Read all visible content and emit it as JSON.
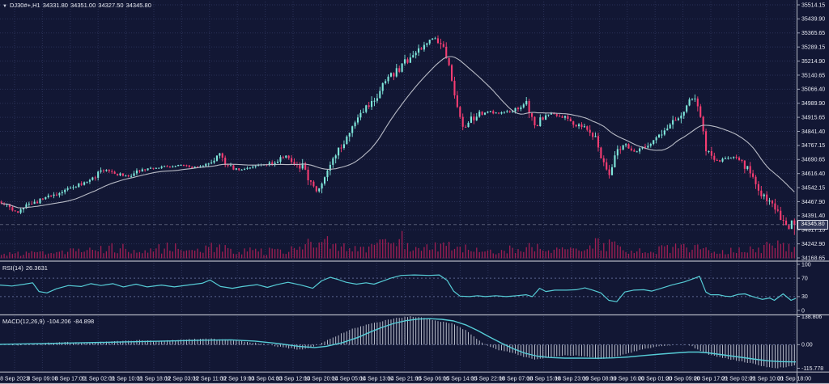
{
  "header": {
    "dropdown_icon": "▼",
    "symbol": "DJ30#+,H1",
    "open": "34331.80",
    "high": "34351.00",
    "low": "34327.50",
    "close": "34345.80"
  },
  "indicators": {
    "rsi": {
      "label": "RSI(14)",
      "value": "26.3631"
    },
    "macd": {
      "label": "MACD(12,26,9)",
      "macd_value": "-104.206",
      "signal_value": "-84.898"
    }
  },
  "colors": {
    "background": "#121734",
    "grid": "#2a3157",
    "level": "#5b6690",
    "bull": "#7fe7db",
    "bear": "#f63d72",
    "ma": "#b7bac5",
    "volume": "#a01e53",
    "indicator": "#56ccd6",
    "histogram": "#c8ccd8",
    "axis_text": "#e7e9f2",
    "separator": "#b3b6c2",
    "tick": "#9aa0b4",
    "price_line": "#9aa0b6"
  },
  "chart_data": [
    {
      "type": "candlestick",
      "title": "DJ30#+,H1",
      "bars": 288,
      "last_close": 34345.8,
      "ma_period": 24,
      "ylim": [
        34140,
        35545
      ],
      "y_ticks": [
        "35514.15",
        "35439.90",
        "35365.65",
        "35289.15",
        "35214.90",
        "35140.65",
        "35066.40",
        "34989.90",
        "34915.65",
        "34841.40",
        "34767.15",
        "34690.65",
        "34616.40",
        "34542.15",
        "34467.90",
        "34391.40",
        "34317.15",
        "34242.90",
        "34168.65"
      ],
      "current_price": "34345.80",
      "x_ticks": [
        "8 Sep 2023",
        "8 Sep 09:00",
        "8 Sep 17:00",
        "11 Sep 02:00",
        "11 Sep 10:00",
        "11 Sep 18:00",
        "12 Sep 03:00",
        "12 Sep 11:00",
        "12 Sep 19:00",
        "13 Sep 04:00",
        "13 Sep 12:00",
        "13 Sep 20:00",
        "14 Sep 05:00",
        "14 Sep 13:00",
        "14 Sep 21:00",
        "15 Sep 06:00",
        "15 Sep 14:00",
        "15 Sep 22:00",
        "18 Sep 07:00",
        "18 Sep 15:00",
        "18 Sep 23:00",
        "19 Sep 08:00",
        "19 Sep 16:00",
        "20 Sep 01:00",
        "20 Sep 09:00",
        "20 Sep 17:00",
        "21 Sep 02:00",
        "21 Sep 10:00",
        "21 Sep 18:00"
      ],
      "price_path": [
        [
          0,
          34465
        ],
        [
          0.01,
          34440
        ],
        [
          0.02,
          34410
        ],
        [
          0.035,
          34450
        ],
        [
          0.05,
          34478
        ],
        [
          0.07,
          34510
        ],
        [
          0.09,
          34545
        ],
        [
          0.11,
          34575
        ],
        [
          0.13,
          34640
        ],
        [
          0.145,
          34615
        ],
        [
          0.16,
          34605
        ],
        [
          0.175,
          34635
        ],
        [
          0.19,
          34645
        ],
        [
          0.21,
          34655
        ],
        [
          0.225,
          34662
        ],
        [
          0.24,
          34650
        ],
        [
          0.255,
          34655
        ],
        [
          0.268,
          34695
        ],
        [
          0.275,
          34720
        ],
        [
          0.283,
          34660
        ],
        [
          0.3,
          34635
        ],
        [
          0.315,
          34645
        ],
        [
          0.33,
          34662
        ],
        [
          0.345,
          34675
        ],
        [
          0.358,
          34715
        ],
        [
          0.368,
          34680
        ],
        [
          0.38,
          34650
        ],
        [
          0.39,
          34560
        ],
        [
          0.398,
          34525
        ],
        [
          0.408,
          34600
        ],
        [
          0.42,
          34700
        ],
        [
          0.432,
          34790
        ],
        [
          0.445,
          34875
        ],
        [
          0.458,
          34950
        ],
        [
          0.47,
          35010
        ],
        [
          0.483,
          35090
        ],
        [
          0.495,
          35150
        ],
        [
          0.508,
          35205
        ],
        [
          0.52,
          35255
        ],
        [
          0.533,
          35300
        ],
        [
          0.545,
          35335
        ],
        [
          0.553,
          35310
        ],
        [
          0.56,
          35255
        ],
        [
          0.568,
          35120
        ],
        [
          0.576,
          34960
        ],
        [
          0.583,
          34850
        ],
        [
          0.59,
          34890
        ],
        [
          0.6,
          34930
        ],
        [
          0.613,
          34950
        ],
        [
          0.627,
          34935
        ],
        [
          0.64,
          34950
        ],
        [
          0.652,
          34960
        ],
        [
          0.662,
          34990
        ],
        [
          0.668,
          34920
        ],
        [
          0.673,
          34850
        ],
        [
          0.682,
          34920
        ],
        [
          0.695,
          34940
        ],
        [
          0.71,
          34915
        ],
        [
          0.725,
          34880
        ],
        [
          0.738,
          34850
        ],
        [
          0.75,
          34800
        ],
        [
          0.76,
          34650
        ],
        [
          0.768,
          34620
        ],
        [
          0.776,
          34760
        ],
        [
          0.788,
          34770
        ],
        [
          0.798,
          34730
        ],
        [
          0.81,
          34755
        ],
        [
          0.822,
          34790
        ],
        [
          0.835,
          34840
        ],
        [
          0.848,
          34900
        ],
        [
          0.86,
          34960
        ],
        [
          0.87,
          35015
        ],
        [
          0.876,
          35035
        ],
        [
          0.882,
          34900
        ],
        [
          0.888,
          34760
        ],
        [
          0.895,
          34700
        ],
        [
          0.905,
          34680
        ],
        [
          0.915,
          34700
        ],
        [
          0.925,
          34705
        ],
        [
          0.935,
          34670
        ],
        [
          0.944,
          34620
        ],
        [
          0.952,
          34560
        ],
        [
          0.96,
          34500
        ],
        [
          0.968,
          34460
        ],
        [
          0.976,
          34420
        ],
        [
          0.984,
          34370
        ],
        [
          0.992,
          34320
        ],
        [
          1,
          34345.8
        ]
      ],
      "volume_envelope": [
        [
          0,
          0.18
        ],
        [
          0.04,
          0.22
        ],
        [
          0.08,
          0.28
        ],
        [
          0.12,
          0.38
        ],
        [
          0.15,
          0.48
        ],
        [
          0.18,
          0.32
        ],
        [
          0.21,
          0.5
        ],
        [
          0.24,
          0.38
        ],
        [
          0.27,
          0.52
        ],
        [
          0.3,
          0.36
        ],
        [
          0.33,
          0.3
        ],
        [
          0.36,
          0.38
        ],
        [
          0.385,
          0.55
        ],
        [
          0.4,
          0.9
        ],
        [
          0.415,
          0.68
        ],
        [
          0.43,
          0.5
        ],
        [
          0.45,
          0.42
        ],
        [
          0.47,
          0.48
        ],
        [
          0.49,
          0.85
        ],
        [
          0.5,
          1.0
        ],
        [
          0.515,
          0.6
        ],
        [
          0.53,
          0.5
        ],
        [
          0.55,
          0.55
        ],
        [
          0.57,
          0.5
        ],
        [
          0.59,
          0.42
        ],
        [
          0.62,
          0.32
        ],
        [
          0.65,
          0.45
        ],
        [
          0.665,
          0.55
        ],
        [
          0.68,
          0.4
        ],
        [
          0.7,
          0.35
        ],
        [
          0.72,
          0.42
        ],
        [
          0.74,
          0.5
        ],
        [
          0.76,
          0.72
        ],
        [
          0.78,
          0.45
        ],
        [
          0.8,
          0.3
        ],
        [
          0.82,
          0.38
        ],
        [
          0.845,
          0.45
        ],
        [
          0.86,
          0.5
        ],
        [
          0.875,
          0.6
        ],
        [
          0.89,
          0.5
        ],
        [
          0.91,
          0.3
        ],
        [
          0.93,
          0.32
        ],
        [
          0.95,
          0.42
        ],
        [
          0.965,
          0.5
        ],
        [
          0.98,
          0.62
        ],
        [
          0.99,
          0.5
        ],
        [
          1,
          0.35
        ]
      ]
    },
    {
      "type": "line",
      "name": "RSI(14)",
      "last_value": 26.3631,
      "levels": [
        70,
        30
      ],
      "ylim": [
        0,
        100
      ],
      "y_ticks": [
        "100",
        "70",
        "30",
        "0"
      ],
      "y_tick_values": [
        100,
        70,
        30,
        0
      ],
      "points": [
        [
          0,
          55
        ],
        [
          0.015,
          53
        ],
        [
          0.031,
          57
        ],
        [
          0.041,
          60
        ],
        [
          0.049,
          41
        ],
        [
          0.059,
          38
        ],
        [
          0.071,
          47
        ],
        [
          0.086,
          54
        ],
        [
          0.102,
          52
        ],
        [
          0.114,
          58
        ],
        [
          0.127,
          54
        ],
        [
          0.142,
          58
        ],
        [
          0.155,
          51
        ],
        [
          0.171,
          57
        ],
        [
          0.185,
          51
        ],
        [
          0.203,
          55
        ],
        [
          0.219,
          51
        ],
        [
          0.236,
          55
        ],
        [
          0.254,
          59
        ],
        [
          0.264,
          66
        ],
        [
          0.277,
          52
        ],
        [
          0.292,
          48
        ],
        [
          0.305,
          52
        ],
        [
          0.323,
          56
        ],
        [
          0.336,
          50
        ],
        [
          0.348,
          56
        ],
        [
          0.362,
          61
        ],
        [
          0.378,
          55
        ],
        [
          0.393,
          48
        ],
        [
          0.404,
          64
        ],
        [
          0.415,
          72
        ],
        [
          0.425,
          67
        ],
        [
          0.435,
          61
        ],
        [
          0.448,
          57
        ],
        [
          0.46,
          60
        ],
        [
          0.47,
          57
        ],
        [
          0.48,
          63
        ],
        [
          0.491,
          70
        ],
        [
          0.504,
          76
        ],
        [
          0.521,
          77
        ],
        [
          0.539,
          76
        ],
        [
          0.552,
          77
        ],
        [
          0.562,
          65
        ],
        [
          0.57,
          42
        ],
        [
          0.578,
          31
        ],
        [
          0.59,
          30
        ],
        [
          0.6,
          32
        ],
        [
          0.61,
          30
        ],
        [
          0.623,
          32
        ],
        [
          0.636,
          30
        ],
        [
          0.649,
          32
        ],
        [
          0.661,
          34
        ],
        [
          0.669,
          30
        ],
        [
          0.678,
          48
        ],
        [
          0.686,
          41
        ],
        [
          0.697,
          44
        ],
        [
          0.712,
          44
        ],
        [
          0.724,
          45
        ],
        [
          0.735,
          49
        ],
        [
          0.745,
          44
        ],
        [
          0.755,
          38
        ],
        [
          0.765,
          22
        ],
        [
          0.775,
          19
        ],
        [
          0.785,
          40
        ],
        [
          0.796,
          44
        ],
        [
          0.809,
          45
        ],
        [
          0.819,
          42
        ],
        [
          0.829,
          47
        ],
        [
          0.844,
          55
        ],
        [
          0.86,
          62
        ],
        [
          0.873,
          70
        ],
        [
          0.879,
          74
        ],
        [
          0.887,
          40
        ],
        [
          0.893,
          34
        ],
        [
          0.903,
          34
        ],
        [
          0.911,
          31
        ],
        [
          0.918,
          30
        ],
        [
          0.928,
          35
        ],
        [
          0.936,
          36
        ],
        [
          0.946,
          30
        ],
        [
          0.958,
          24
        ],
        [
          0.967,
          27
        ],
        [
          0.973,
          22
        ],
        [
          0.984,
          36
        ],
        [
          0.994,
          22
        ],
        [
          1,
          26.36
        ]
      ]
    },
    {
      "type": "macd",
      "name": "MACD(12,26,9)",
      "last_macd": -104.206,
      "last_signal": -84.898,
      "ylim": [
        -115.778,
        138.806
      ],
      "y_ticks": [
        "138.806",
        "0.00",
        "-115.778"
      ],
      "y_tick_values": [
        138.806,
        0,
        -115.778
      ],
      "macd_path": [
        [
          0,
          4
        ],
        [
          0.02,
          -2
        ],
        [
          0.05,
          8
        ],
        [
          0.08,
          12
        ],
        [
          0.11,
          8
        ],
        [
          0.14,
          16
        ],
        [
          0.17,
          22
        ],
        [
          0.2,
          18
        ],
        [
          0.23,
          26
        ],
        [
          0.26,
          30
        ],
        [
          0.29,
          22
        ],
        [
          0.315,
          12
        ],
        [
          0.34,
          -4
        ],
        [
          0.36,
          -16
        ],
        [
          0.378,
          -24
        ],
        [
          0.392,
          -12
        ],
        [
          0.408,
          16
        ],
        [
          0.425,
          48
        ],
        [
          0.443,
          78
        ],
        [
          0.458,
          95
        ],
        [
          0.472,
          108
        ],
        [
          0.487,
          122
        ],
        [
          0.5,
          132
        ],
        [
          0.513,
          138.8
        ],
        [
          0.527,
          134
        ],
        [
          0.54,
          126
        ],
        [
          0.555,
          114
        ],
        [
          0.57,
          103
        ],
        [
          0.585,
          72
        ],
        [
          0.6,
          30
        ],
        [
          0.613,
          -6
        ],
        [
          0.628,
          -28
        ],
        [
          0.643,
          -38
        ],
        [
          0.658,
          -58
        ],
        [
          0.672,
          -72
        ],
        [
          0.687,
          -66
        ],
        [
          0.7,
          -58
        ],
        [
          0.715,
          -52
        ],
        [
          0.73,
          -56
        ],
        [
          0.745,
          -64
        ],
        [
          0.758,
          -72
        ],
        [
          0.772,
          -60
        ],
        [
          0.788,
          -44
        ],
        [
          0.805,
          -26
        ],
        [
          0.822,
          -12
        ],
        [
          0.84,
          -4
        ],
        [
          0.855,
          2
        ],
        [
          0.868,
          -2
        ],
        [
          0.88,
          -28
        ],
        [
          0.895,
          -52
        ],
        [
          0.91,
          -66
        ],
        [
          0.925,
          -76
        ],
        [
          0.94,
          -88
        ],
        [
          0.955,
          -100
        ],
        [
          0.968,
          -112
        ],
        [
          0.978,
          -115.8
        ],
        [
          0.988,
          -110
        ],
        [
          1,
          -104.2
        ]
      ],
      "signal_path": [
        [
          0,
          2
        ],
        [
          0.05,
          5
        ],
        [
          0.1,
          9
        ],
        [
          0.15,
          13
        ],
        [
          0.2,
          17
        ],
        [
          0.25,
          22
        ],
        [
          0.29,
          24
        ],
        [
          0.32,
          18
        ],
        [
          0.35,
          6
        ],
        [
          0.375,
          -8
        ],
        [
          0.395,
          -14
        ],
        [
          0.41,
          -8
        ],
        [
          0.43,
          10
        ],
        [
          0.45,
          36
        ],
        [
          0.465,
          62
        ],
        [
          0.48,
          85
        ],
        [
          0.495,
          105
        ],
        [
          0.51,
          118
        ],
        [
          0.525,
          126
        ],
        [
          0.54,
          128
        ],
        [
          0.555,
          125
        ],
        [
          0.57,
          117
        ],
        [
          0.585,
          98
        ],
        [
          0.6,
          70
        ],
        [
          0.615,
          38
        ],
        [
          0.63,
          8
        ],
        [
          0.645,
          -20
        ],
        [
          0.66,
          -42
        ],
        [
          0.675,
          -56
        ],
        [
          0.69,
          -63
        ],
        [
          0.71,
          -66
        ],
        [
          0.73,
          -66
        ],
        [
          0.75,
          -67
        ],
        [
          0.77,
          -65
        ],
        [
          0.79,
          -60
        ],
        [
          0.81,
          -53
        ],
        [
          0.83,
          -46
        ],
        [
          0.85,
          -40
        ],
        [
          0.865,
          -36
        ],
        [
          0.878,
          -36
        ],
        [
          0.89,
          -40
        ],
        [
          0.905,
          -48
        ],
        [
          0.92,
          -56
        ],
        [
          0.935,
          -64
        ],
        [
          0.95,
          -72
        ],
        [
          0.965,
          -79
        ],
        [
          0.98,
          -83
        ],
        [
          1,
          -84.9
        ]
      ]
    }
  ]
}
